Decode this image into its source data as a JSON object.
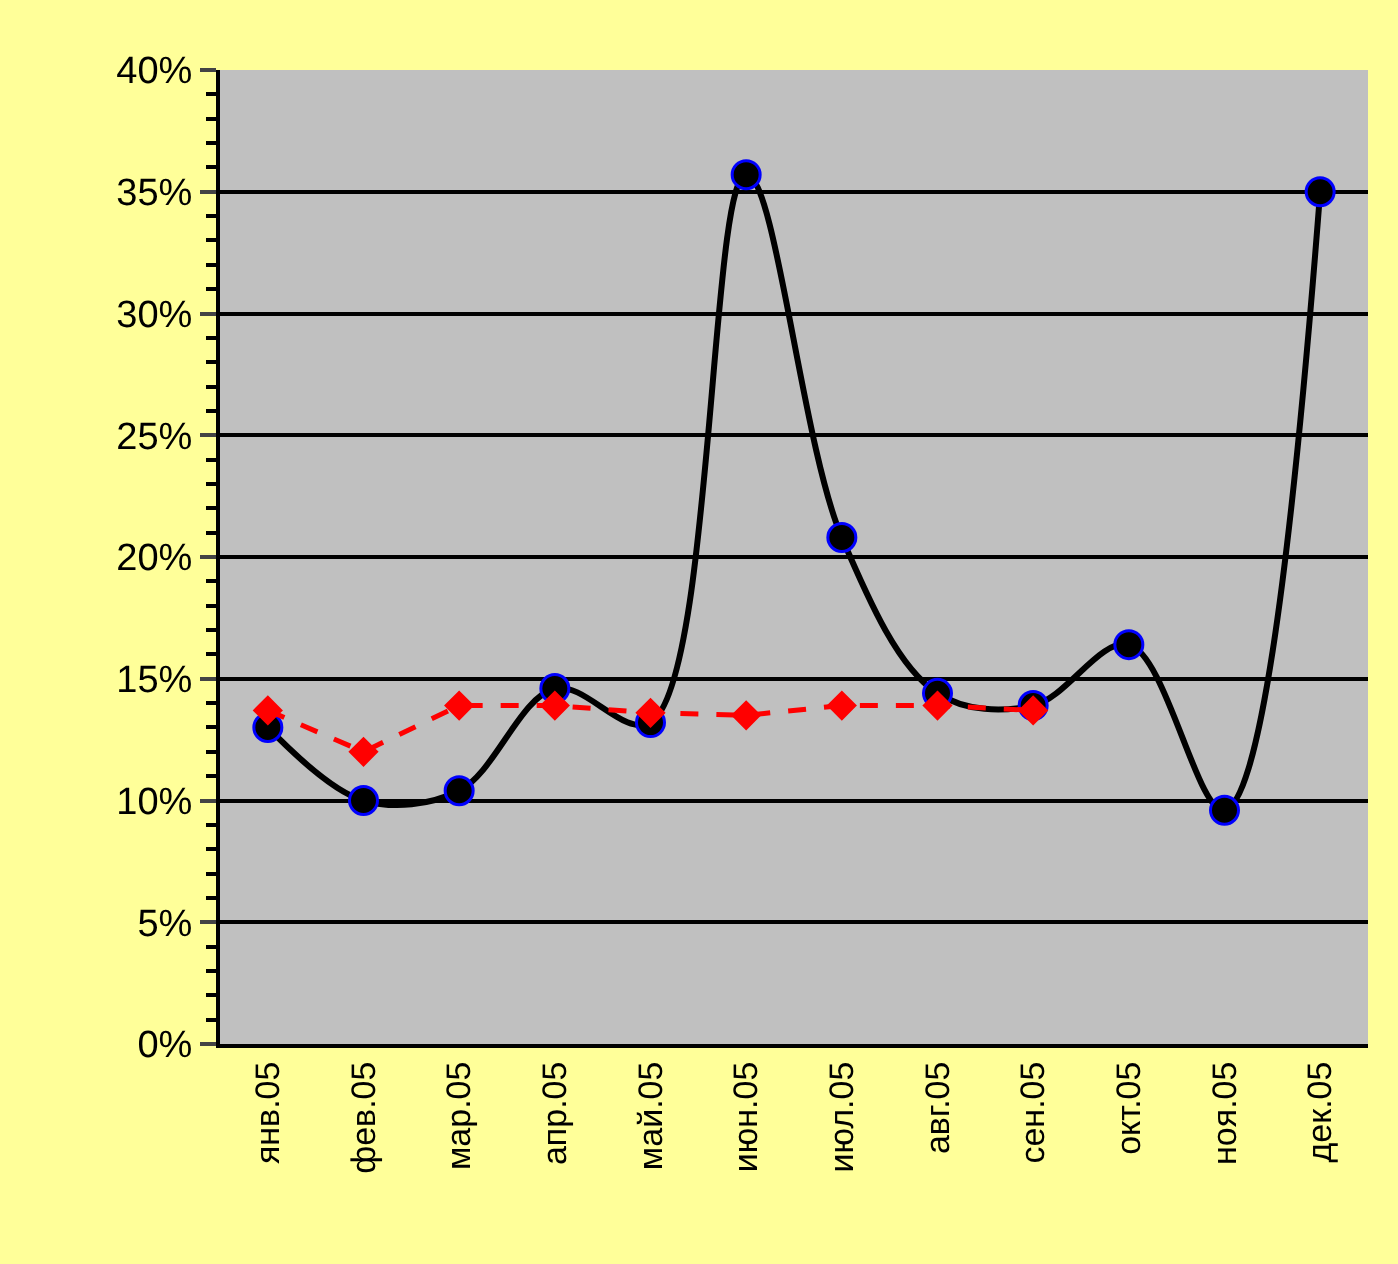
{
  "chart_data": {
    "type": "line",
    "categories": [
      "янв.05",
      "фев.05",
      "мар.05",
      "апр.05",
      "май.05",
      "июн.05",
      "июл.05",
      "авг.05",
      "сен.05",
      "окт.05",
      "ноя.05",
      "дек.05"
    ],
    "series": [
      {
        "color": "#000000",
        "marker": "circle",
        "line_style": "solid",
        "values": [
          13,
          10,
          10.4,
          14.6,
          13.2,
          35.7,
          20.8,
          14.4,
          13.9,
          16.4,
          9.6,
          35
        ]
      },
      {
        "color": "#ff0000",
        "marker": "diamond",
        "line_style": "dashed",
        "values": [
          13.7,
          12,
          13.9,
          13.9,
          13.6,
          13.5,
          13.9,
          13.9,
          13.7,
          null,
          null,
          null
        ]
      }
    ],
    "ylim": [
      0,
      40
    ],
    "yticks": [
      {
        "value": 0,
        "label": "0%"
      },
      {
        "value": 5,
        "label": "5%"
      },
      {
        "value": 10,
        "label": "10%"
      },
      {
        "value": 15,
        "label": "15%"
      },
      {
        "value": 20,
        "label": "20%"
      },
      {
        "value": 25,
        "label": "25%"
      },
      {
        "value": 30,
        "label": "30%"
      },
      {
        "value": 35,
        "label": "35%"
      },
      {
        "value": 40,
        "label": "40%"
      }
    ],
    "grid": "y",
    "legend": false
  }
}
